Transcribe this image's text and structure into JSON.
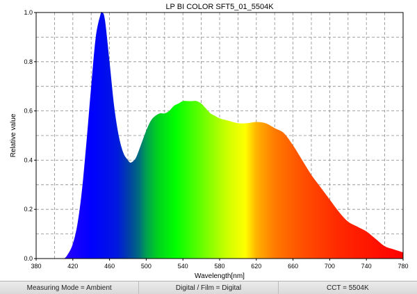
{
  "chart_data": {
    "type": "area",
    "title": "LP BI COLOR SFT5_01_5504K",
    "xlabel": "Wavelength[nm]",
    "ylabel": "Relative value",
    "xlim": [
      380,
      780
    ],
    "ylim": [
      0,
      1.0
    ],
    "x_ticks": [
      380,
      420,
      460,
      500,
      540,
      580,
      620,
      660,
      700,
      740,
      780
    ],
    "y_ticks": [
      "0.0",
      "0.2",
      "0.4",
      "0.6",
      "0.8",
      "1.0"
    ],
    "grid": true,
    "series": [
      {
        "x": [
          380,
          400,
          410,
          415,
          420,
          425,
          430,
          435,
          440,
          445,
          450,
          452,
          455,
          460,
          465,
          470,
          475,
          480,
          483,
          487,
          490,
          495,
          500,
          505,
          510,
          515,
          520,
          525,
          530,
          535,
          540,
          545,
          550,
          555,
          560,
          565,
          570,
          575,
          580,
          590,
          600,
          610,
          620,
          630,
          640,
          650,
          660,
          670,
          680,
          690,
          700,
          710,
          720,
          730,
          740,
          750,
          760,
          770,
          780
        ],
        "y": [
          0,
          0,
          0.0,
          0.02,
          0.06,
          0.14,
          0.28,
          0.48,
          0.7,
          0.9,
          0.99,
          1.0,
          0.97,
          0.8,
          0.62,
          0.5,
          0.43,
          0.4,
          0.39,
          0.4,
          0.42,
          0.47,
          0.52,
          0.56,
          0.58,
          0.59,
          0.59,
          0.6,
          0.62,
          0.63,
          0.64,
          0.64,
          0.64,
          0.64,
          0.63,
          0.61,
          0.59,
          0.58,
          0.57,
          0.56,
          0.55,
          0.55,
          0.555,
          0.55,
          0.53,
          0.51,
          0.46,
          0.4,
          0.34,
          0.29,
          0.24,
          0.19,
          0.15,
          0.13,
          0.11,
          0.08,
          0.05,
          0.037,
          0.025
        ]
      }
    ]
  },
  "status_bar": {
    "measuring_mode": "Measuring Mode = Ambient",
    "digital_film": "Digital / Film = Digital",
    "cct": "CCT = 5504K"
  }
}
